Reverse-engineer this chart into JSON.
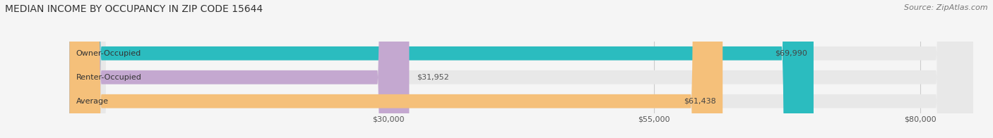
{
  "title": "MEDIAN INCOME BY OCCUPANCY IN ZIP CODE 15644",
  "source": "Source: ZipAtlas.com",
  "categories": [
    "Owner-Occupied",
    "Renter-Occupied",
    "Average"
  ],
  "values": [
    69990,
    31952,
    61438
  ],
  "bar_colors": [
    "#2bbcbf",
    "#c4a8d0",
    "#f5c07a"
  ],
  "bar_labels": [
    "$69,990",
    "$31,952",
    "$61,438"
  ],
  "label_inside": [
    true,
    false,
    true
  ],
  "xmin": 0,
  "xmax": 85000,
  "xticks": [
    30000,
    55000,
    80000
  ],
  "xticklabels": [
    "$30,000",
    "$55,000",
    "$80,000"
  ],
  "background_color": "#f5f5f5",
  "bar_background_color": "#e8e8e8",
  "title_fontsize": 10,
  "source_fontsize": 8,
  "label_fontsize": 8,
  "tick_fontsize": 8,
  "bar_height": 0.58
}
